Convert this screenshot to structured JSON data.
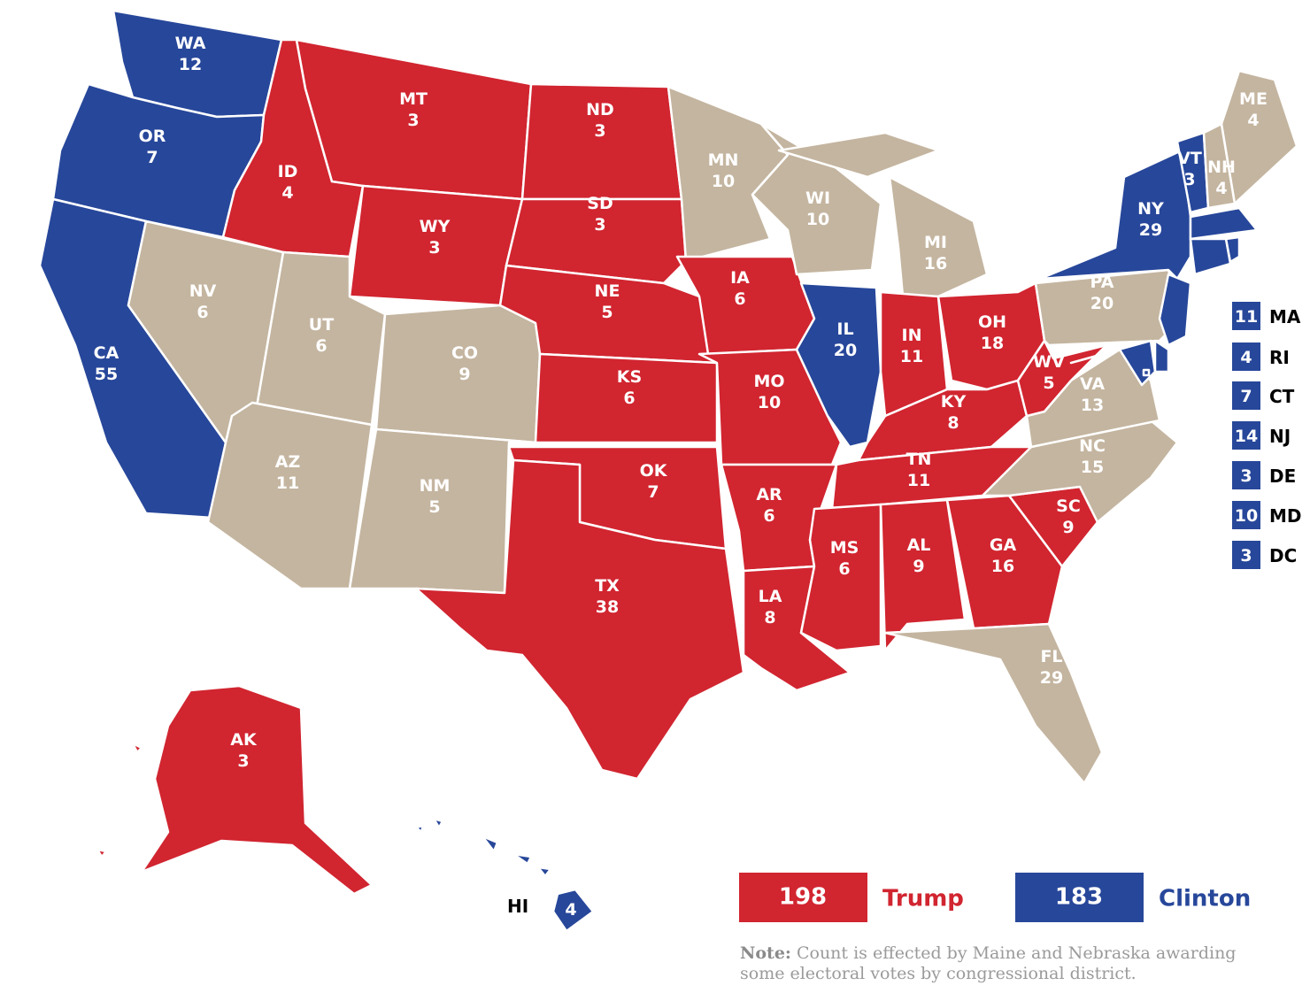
{
  "states": [
    {
      "abbr": "WA",
      "votes": "12",
      "color": "#27479a"
    },
    {
      "abbr": "OR",
      "votes": "7",
      "color": "#27479a"
    },
    {
      "abbr": "CA",
      "votes": "55",
      "color": "#27479a"
    },
    {
      "abbr": "NV",
      "votes": "6",
      "color": "#c4b5a0"
    },
    {
      "abbr": "ID",
      "votes": "4",
      "color": "#d12530"
    },
    {
      "abbr": "MT",
      "votes": "3",
      "color": "#d12530"
    },
    {
      "abbr": "WY",
      "votes": "3",
      "color": "#d12530"
    },
    {
      "abbr": "UT",
      "votes": "6",
      "color": "#c4b5a0"
    },
    {
      "abbr": "CO",
      "votes": "9",
      "color": "#c4b5a0"
    },
    {
      "abbr": "AZ",
      "votes": "11",
      "color": "#c4b5a0"
    },
    {
      "abbr": "NM",
      "votes": "5",
      "color": "#c4b5a0"
    },
    {
      "abbr": "ND",
      "votes": "3",
      "color": "#d12530"
    },
    {
      "abbr": "SD",
      "votes": "3",
      "color": "#d12530"
    },
    {
      "abbr": "NE",
      "votes": "5",
      "color": "#d12530"
    },
    {
      "abbr": "KS",
      "votes": "6",
      "color": "#d12530"
    },
    {
      "abbr": "OK",
      "votes": "7",
      "color": "#d12530"
    },
    {
      "abbr": "TX",
      "votes": "38",
      "color": "#d12530"
    },
    {
      "abbr": "MN",
      "votes": "10",
      "color": "#c4b5a0"
    },
    {
      "abbr": "IA",
      "votes": "6",
      "color": "#d12530"
    },
    {
      "abbr": "MO",
      "votes": "10",
      "color": "#d12530"
    },
    {
      "abbr": "AR",
      "votes": "6",
      "color": "#d12530"
    },
    {
      "abbr": "LA",
      "votes": "8",
      "color": "#d12530"
    },
    {
      "abbr": "WI",
      "votes": "10",
      "color": "#c4b5a0"
    },
    {
      "abbr": "IL",
      "votes": "20",
      "color": "#27479a"
    },
    {
      "abbr": "MI",
      "votes": "16",
      "color": "#c4b5a0"
    },
    {
      "abbr": "IN",
      "votes": "11",
      "color": "#d12530"
    },
    {
      "abbr": "OH",
      "votes": "18",
      "color": "#d12530"
    },
    {
      "abbr": "KY",
      "votes": "8",
      "color": "#d12530"
    },
    {
      "abbr": "TN",
      "votes": "11",
      "color": "#d12530"
    },
    {
      "abbr": "MS",
      "votes": "6",
      "color": "#d12530"
    },
    {
      "abbr": "AL",
      "votes": "9",
      "color": "#d12530"
    },
    {
      "abbr": "GA",
      "votes": "16",
      "color": "#d12530"
    },
    {
      "abbr": "FL",
      "votes": "29",
      "color": "#c4b5a0"
    },
    {
      "abbr": "SC",
      "votes": "9",
      "color": "#d12530"
    },
    {
      "abbr": "NC",
      "votes": "15",
      "color": "#c4b5a0"
    },
    {
      "abbr": "VA",
      "votes": "13",
      "color": "#c4b5a0"
    },
    {
      "abbr": "WV",
      "votes": "5",
      "color": "#d12530"
    },
    {
      "abbr": "PA",
      "votes": "20",
      "color": "#c4b5a0"
    },
    {
      "abbr": "NY",
      "votes": "29",
      "color": "#27479a"
    },
    {
      "abbr": "VT",
      "votes": "3",
      "color": "#27479a"
    },
    {
      "abbr": "NH",
      "votes": "4",
      "color": "#c4b5a0"
    },
    {
      "abbr": "ME",
      "votes": "4",
      "color": "#c4b5a0"
    },
    {
      "abbr": "MA",
      "votes": "11",
      "color": "#27479a"
    },
    {
      "abbr": "RI",
      "votes": "4",
      "color": "#27479a"
    },
    {
      "abbr": "CT",
      "votes": "7",
      "color": "#27479a"
    },
    {
      "abbr": "NJ",
      "votes": "14",
      "color": "#27479a"
    },
    {
      "abbr": "DE",
      "votes": "3",
      "color": "#27479a"
    },
    {
      "abbr": "MD",
      "votes": "10",
      "color": "#27479a"
    },
    {
      "abbr": "DC",
      "votes": "3",
      "color": "#27479a"
    },
    {
      "abbr": "AK",
      "votes": "3",
      "color": "#d12530"
    },
    {
      "abbr": "HI",
      "votes": "4",
      "color": "#27479a"
    }
  ],
  "legend": [
    {
      "count": "198",
      "label": "Trump",
      "color": "#d12530"
    },
    {
      "count": "183",
      "label": "Clinton",
      "color": "#27479a"
    }
  ],
  "note": {
    "lead": "Note:",
    "text": "Count is effected by Maine and Nebraska awarding some electoral votes by congressional district."
  }
}
